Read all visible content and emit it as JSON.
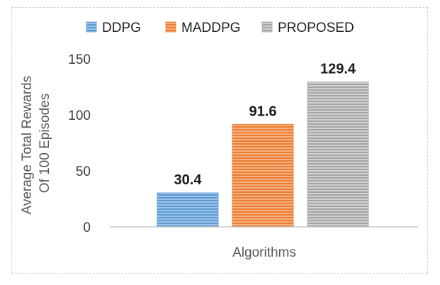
{
  "chart_data": {
    "type": "bar",
    "title": "",
    "xlabel": "Algorithms",
    "ylabel": [
      "Average Total Rewards",
      "Of 100 Episodes"
    ],
    "ylim": [
      0,
      150
    ],
    "yticks": [
      0,
      50,
      100,
      150
    ],
    "grid": false,
    "legend_position": "top",
    "series": [
      {
        "name": "DDPG",
        "value": 30.4,
        "label": "30.4",
        "color": "#5b9bd5"
      },
      {
        "name": "MADDPG",
        "value": 91.6,
        "label": "91.6",
        "color": "#ed7d31"
      },
      {
        "name": "PROPOSED",
        "value": 129.4,
        "label": "129.4",
        "color": "#a5a5a5"
      }
    ]
  }
}
